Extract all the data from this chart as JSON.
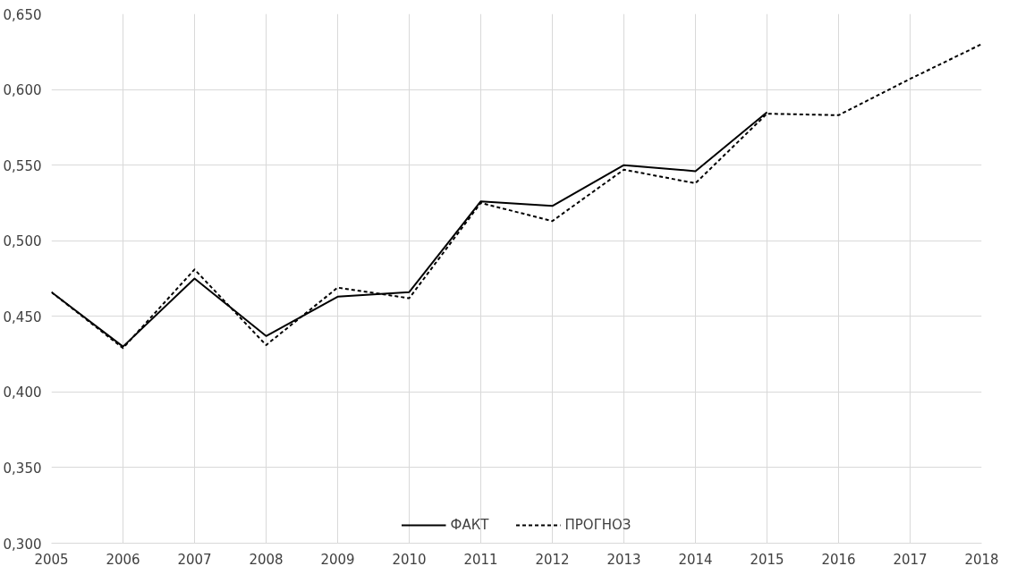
{
  "chart_data": {
    "type": "line",
    "categories": [
      "2005",
      "2006",
      "2007",
      "2008",
      "2009",
      "2010",
      "2011",
      "2012",
      "2013",
      "2014",
      "2015",
      "2016",
      "2017",
      "2018"
    ],
    "series": [
      {
        "name": "ФАКТ",
        "color": "#000000",
        "line_style": "solid",
        "values": [
          0.466,
          0.43,
          0.475,
          0.437,
          0.463,
          0.466,
          0.526,
          0.523,
          0.55,
          0.546,
          0.585,
          null,
          null,
          null
        ]
      },
      {
        "name": "ПРОГНОЗ",
        "color": "#000000",
        "line_style": "dashed",
        "values": [
          0.466,
          0.429,
          0.481,
          0.431,
          0.469,
          0.462,
          0.525,
          0.513,
          0.547,
          0.538,
          0.584,
          0.583,
          0.607,
          0.63
        ]
      }
    ],
    "ylim": [
      0.3,
      0.65
    ],
    "yticks": [
      {
        "value": 0.3,
        "label": "0,300"
      },
      {
        "value": 0.35,
        "label": "0,350"
      },
      {
        "value": 0.4,
        "label": "0,400"
      },
      {
        "value": 0.45,
        "label": "0,450"
      },
      {
        "value": 0.5,
        "label": "0,500"
      },
      {
        "value": 0.55,
        "label": "0,550"
      },
      {
        "value": 0.6,
        "label": "0,600"
      },
      {
        "value": 0.65,
        "label": "0,650"
      }
    ],
    "grid": true,
    "legend": "bottom",
    "marker": "none"
  }
}
